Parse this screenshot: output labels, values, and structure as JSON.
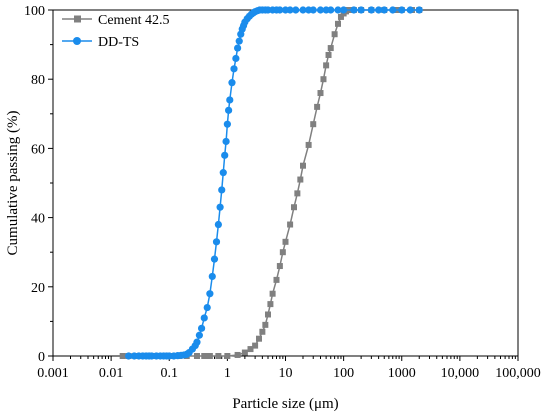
{
  "chart_data": {
    "type": "scatter",
    "xlabel": "Particle size (μm)",
    "ylabel": "Cumulative passing (%)",
    "x_scale": "log",
    "xlim": [
      0.001,
      100000
    ],
    "ylim": [
      0,
      100
    ],
    "x_ticks": [
      0.001,
      0.01,
      0.1,
      1,
      10,
      100,
      1000,
      10000,
      100000
    ],
    "x_tick_labels": [
      "0.001",
      "0.01",
      "0.1",
      "1",
      "10",
      "100",
      "1000",
      "10,000",
      "100,000"
    ],
    "y_ticks": [
      0,
      20,
      40,
      60,
      80,
      100
    ],
    "y_tick_labels": [
      "0",
      "20",
      "40",
      "60",
      "80",
      "100"
    ],
    "grid": false,
    "legend_position": "top-left",
    "series": [
      {
        "name": "Cement 42.5",
        "color": "#808080",
        "marker": "square",
        "x": [
          0.0158,
          0.02,
          0.03,
          0.04,
          0.06,
          0.08,
          0.1,
          0.15,
          0.2,
          0.3,
          0.4,
          0.5,
          0.7,
          1.0,
          1.5,
          2.0,
          2.5,
          3.0,
          3.5,
          4.0,
          4.5,
          5.0,
          5.5,
          6.0,
          7.0,
          8.0,
          9.0,
          10,
          12,
          14,
          16,
          18,
          20,
          25,
          30,
          35,
          40,
          45,
          50,
          55,
          60,
          70,
          80,
          90,
          100,
          110,
          120,
          150,
          200,
          300,
          500,
          800,
          1000,
          1500,
          2000
        ],
        "y": [
          0,
          0,
          0,
          0,
          0,
          0,
          0,
          0,
          0,
          0,
          0,
          0,
          0,
          0,
          0.3,
          1,
          2,
          3,
          5,
          7,
          9,
          12,
          15,
          18,
          22,
          26,
          30,
          33,
          38,
          43,
          47,
          51,
          55,
          61,
          67,
          72,
          76,
          80,
          84,
          87,
          89,
          93,
          96,
          98,
          99,
          99.6,
          100,
          100,
          100,
          100,
          100,
          100,
          100,
          100,
          100
        ]
      },
      {
        "name": "DD-TS",
        "color": "#1a8cec",
        "marker": "circle",
        "x": [
          0.02,
          0.025,
          0.03,
          0.035,
          0.04,
          0.045,
          0.05,
          0.06,
          0.07,
          0.08,
          0.09,
          0.1,
          0.12,
          0.14,
          0.16,
          0.18,
          0.2,
          0.22,
          0.25,
          0.28,
          0.3,
          0.33,
          0.36,
          0.4,
          0.45,
          0.5,
          0.55,
          0.6,
          0.65,
          0.7,
          0.75,
          0.8,
          0.85,
          0.9,
          0.95,
          1.0,
          1.05,
          1.1,
          1.2,
          1.3,
          1.4,
          1.5,
          1.6,
          1.7,
          1.8,
          1.9,
          2.0,
          2.2,
          2.4,
          2.6,
          2.8,
          3.0,
          3.3,
          3.6,
          4.0,
          4.5,
          5,
          6,
          7,
          8,
          10,
          12,
          15,
          20,
          25,
          30,
          40,
          50,
          60,
          80,
          100,
          150,
          200,
          300,
          400,
          500,
          700,
          1000,
          1400,
          2000
        ],
        "y": [
          0,
          0,
          0,
          0,
          0,
          0,
          0,
          0,
          0,
          0,
          0,
          0,
          0,
          0.1,
          0.2,
          0.3,
          0.5,
          1,
          2,
          3,
          4,
          6,
          8,
          11,
          14,
          18,
          23,
          28,
          33,
          38,
          43,
          48,
          53,
          58,
          62,
          67,
          71,
          74,
          79,
          83,
          86,
          89,
          91,
          93,
          94.5,
          95.5,
          96.5,
          97.5,
          98.2,
          98.8,
          99.2,
          99.5,
          99.8,
          100,
          100,
          100,
          100,
          100,
          100,
          100,
          100,
          100,
          100,
          100,
          100,
          100,
          100,
          100,
          100,
          100,
          100,
          100,
          100,
          100,
          100,
          100,
          100,
          100,
          100,
          100
        ]
      }
    ]
  }
}
